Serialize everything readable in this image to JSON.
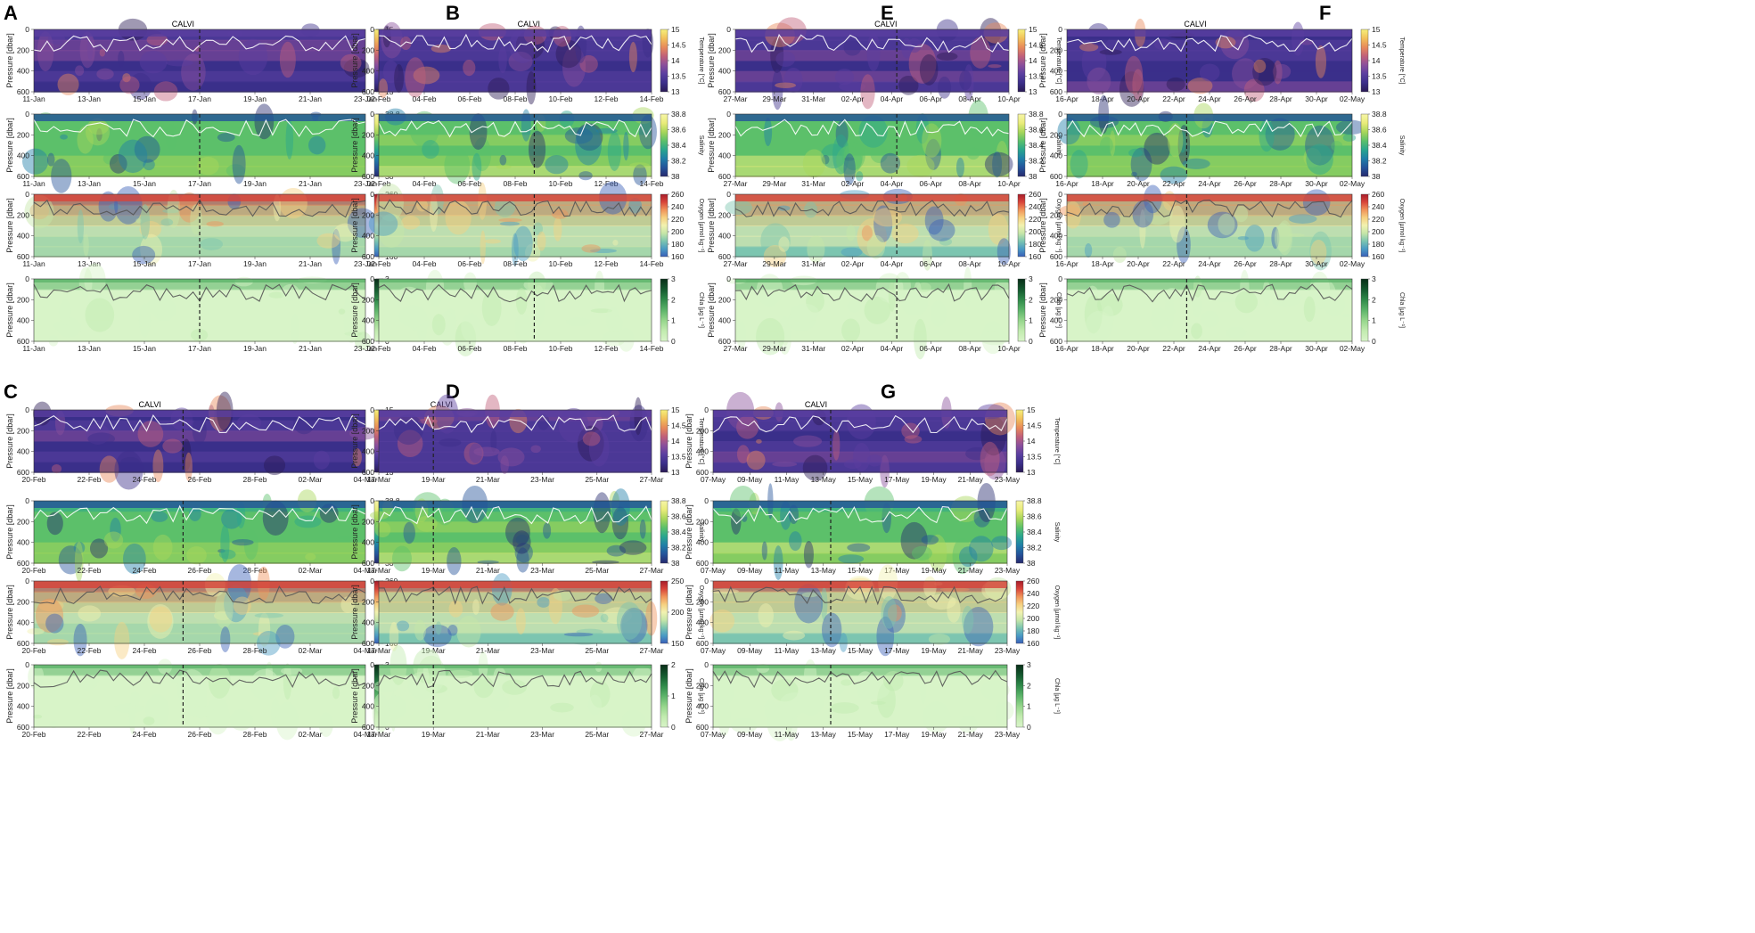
{
  "figure": {
    "ylabel": "Pressure [dbar]",
    "depth_ticks": [
      "0",
      "200",
      "400",
      "600"
    ]
  },
  "variables": [
    {
      "key": "temp",
      "label": "Temperature [°C]",
      "ticks": [
        "15",
        "14.5",
        "14",
        "13.5",
        "13"
      ],
      "colors": [
        "#2a1a55",
        "#3b2f8a",
        "#5a3fa0",
        "#8a4f9c",
        "#c0607a",
        "#e88a5a",
        "#f2c15a",
        "#f6f07a"
      ]
    },
    {
      "key": "sal",
      "label": "Salinity",
      "ticks": [
        "38.8",
        "38.6",
        "38.4",
        "38.2",
        "38"
      ],
      "colors": [
        "#262a6e",
        "#24539a",
        "#1f7fa8",
        "#2aa68e",
        "#5cc06a",
        "#a8d65a",
        "#e9ec7a",
        "#f7f5a8"
      ]
    },
    {
      "key": "oxy",
      "label": "Oxygen [µmol kg⁻¹]",
      "ticks": [
        "260",
        "240",
        "220",
        "200",
        "180",
        "160"
      ],
      "colors": [
        "#3a60b8",
        "#4a9bc4",
        "#7cc5b0",
        "#c6e6a8",
        "#f2f2b0",
        "#f6d080",
        "#f0935a",
        "#d8443a",
        "#a81c2a"
      ]
    },
    {
      "key": "chl",
      "label": "Chla [µg L⁻¹]",
      "ticks": [
        "3",
        "2",
        "1",
        "0"
      ],
      "colors": [
        "#d8f4c8",
        "#c2ebb0",
        "#96d68c",
        "#5cb46a",
        "#2f8a4a",
        "#14582e",
        "#082e18"
      ]
    }
  ],
  "panels": [
    {
      "letter": "A",
      "station": "CALVI",
      "dates": [
        "11-Jan",
        "13-Jan",
        "15-Jan",
        "17-Jan",
        "19-Jan",
        "21-Jan",
        "23-Jan"
      ],
      "marker": 0.5
    },
    {
      "letter": "B",
      "station": "CALVI",
      "dates": [
        "02-Feb",
        "04-Feb",
        "06-Feb",
        "08-Feb",
        "10-Feb",
        "12-Feb",
        "14-Feb"
      ],
      "marker": 0.57
    },
    {
      "letter": "E",
      "station": "CALVI",
      "dates": [
        "27-Mar",
        "29-Mar",
        "31-Mar",
        "02-Apr",
        "04-Apr",
        "06-Apr",
        "08-Apr",
        "10-Apr"
      ],
      "marker": 0.59
    },
    {
      "letter": "F",
      "station": "CALVI",
      "dates": [
        "16-Apr",
        "18-Apr",
        "20-Apr",
        "22-Apr",
        "24-Apr",
        "26-Apr",
        "28-Apr",
        "30-Apr",
        "02-May"
      ],
      "marker": 0.42
    },
    {
      "letter": "C",
      "station": "CALVI",
      "dates": [
        "20-Feb",
        "22-Feb",
        "24-Feb",
        "26-Feb",
        "28-Feb",
        "02-Mar",
        "04-Mar"
      ],
      "marker": 0.45,
      "oxy_ticks": [
        "260",
        "240",
        "220",
        "200",
        "180",
        "160"
      ]
    },
    {
      "letter": "D",
      "station": "CALVI",
      "dates": [
        "17-Mar",
        "19-Mar",
        "21-Mar",
        "23-Mar",
        "25-Mar",
        "27-Mar"
      ],
      "marker": 0.2,
      "oxy_ticks": [
        "250",
        "200",
        "150"
      ],
      "chl_ticks": [
        "2",
        "1",
        "0"
      ]
    },
    {
      "letter": "G",
      "station": "CALVI",
      "dates": [
        "07-May",
        "09-May",
        "11-May",
        "13-May",
        "15-May",
        "17-May",
        "19-May",
        "21-May",
        "23-May"
      ],
      "marker": 0.4
    }
  ]
}
